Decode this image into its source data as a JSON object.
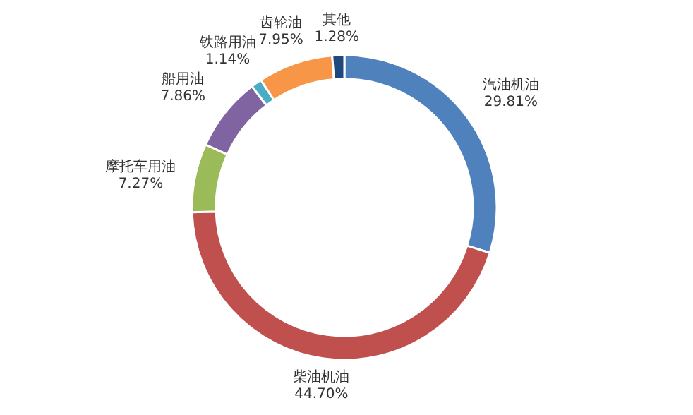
{
  "chart_data": {
    "type": "donut",
    "categories": [
      "汽油机油",
      "柴油机油",
      "摩托车用油",
      "船用油",
      "铁路用油",
      "齿轮油",
      "其他"
    ],
    "values": [
      29.81,
      44.7,
      7.27,
      7.86,
      1.14,
      7.95,
      1.28
    ],
    "colors": [
      "#4f81bd",
      "#c0504d",
      "#9bbb59",
      "#8064a2",
      "#4bacc6",
      "#f79646",
      "#1f497d"
    ],
    "value_labels": [
      "29.81%",
      "44.70%",
      "7.27%",
      "7.86%",
      "1.14%",
      "7.95%",
      "1.28%"
    ]
  }
}
